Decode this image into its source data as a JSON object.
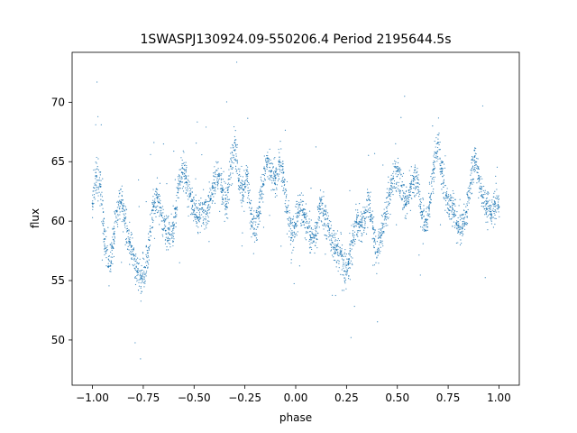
{
  "chart_data": {
    "type": "scatter",
    "title": "1SWASPJ130924.09-550206.4 Period 2195644.5s",
    "xlabel": "phase",
    "ylabel": "flux",
    "xlim": [
      -1.1,
      1.1
    ],
    "ylim": [
      46.2,
      74.2
    ],
    "grid": false,
    "legend": "none",
    "x_ticks": [
      -1.0,
      -0.75,
      -0.5,
      -0.25,
      0.0,
      0.25,
      0.5,
      0.75,
      1.0
    ],
    "x_tick_labels": [
      "−1.00",
      "−0.75",
      "−0.50",
      "−0.25",
      "0.00",
      "0.25",
      "0.50",
      "0.75",
      "1.00"
    ],
    "y_ticks": [
      50,
      55,
      60,
      65,
      70
    ],
    "y_tick_labels": [
      "50",
      "55",
      "60",
      "65",
      "70"
    ],
    "marker_color": "#1f77b4",
    "series": [
      {
        "points": [
          [
            -1.0,
            61.5
          ],
          [
            -0.98,
            63.8
          ],
          [
            -0.96,
            62.9
          ],
          [
            -0.94,
            58.5
          ],
          [
            -0.92,
            56.2
          ],
          [
            -0.9,
            57.8
          ],
          [
            -0.88,
            60.8
          ],
          [
            -0.86,
            61.6
          ],
          [
            -0.84,
            60.2
          ],
          [
            -0.82,
            58.3
          ],
          [
            -0.8,
            57.2
          ],
          [
            -0.78,
            55.8
          ],
          [
            -0.76,
            55.2
          ],
          [
            -0.74,
            56.1
          ],
          [
            -0.72,
            58.4
          ],
          [
            -0.7,
            61.2
          ],
          [
            -0.68,
            62.0
          ],
          [
            -0.66,
            60.5
          ],
          [
            -0.64,
            59.2
          ],
          [
            -0.62,
            58.9
          ],
          [
            -0.6,
            59.6
          ],
          [
            -0.58,
            62.4
          ],
          [
            -0.56,
            64.1
          ],
          [
            -0.54,
            63.6
          ],
          [
            -0.52,
            62.1
          ],
          [
            -0.5,
            60.9
          ],
          [
            -0.48,
            60.3
          ],
          [
            -0.46,
            61.1
          ],
          [
            -0.44,
            60.6
          ],
          [
            -0.42,
            61.9
          ],
          [
            -0.4,
            63.2
          ],
          [
            -0.38,
            63.8
          ],
          [
            -0.36,
            62.6
          ],
          [
            -0.34,
            61.2
          ],
          [
            -0.32,
            64.6
          ],
          [
            -0.3,
            66.6
          ],
          [
            -0.28,
            63.4
          ],
          [
            -0.26,
            62.2
          ],
          [
            -0.24,
            63.9
          ],
          [
            -0.22,
            60.6
          ],
          [
            -0.2,
            58.8
          ],
          [
            -0.18,
            61.2
          ],
          [
            -0.16,
            63.1
          ],
          [
            -0.14,
            65.3
          ],
          [
            -0.12,
            64.2
          ],
          [
            -0.1,
            63.6
          ],
          [
            -0.08,
            65.0
          ],
          [
            -0.06,
            64.1
          ],
          [
            -0.04,
            60.8
          ],
          [
            -0.02,
            58.6
          ],
          [
            0.0,
            59.8
          ],
          [
            0.02,
            61.4
          ],
          [
            0.04,
            60.6
          ],
          [
            0.06,
            59.4
          ],
          [
            0.08,
            58.6
          ],
          [
            0.1,
            58.8
          ],
          [
            0.12,
            61.0
          ],
          [
            0.14,
            60.9
          ],
          [
            0.16,
            59.6
          ],
          [
            0.18,
            58.2
          ],
          [
            0.2,
            57.6
          ],
          [
            0.22,
            57.4
          ],
          [
            0.24,
            55.8
          ],
          [
            0.26,
            56.4
          ],
          [
            0.28,
            58.2
          ],
          [
            0.3,
            59.9
          ],
          [
            0.32,
            59.6
          ],
          [
            0.34,
            60.2
          ],
          [
            0.36,
            61.8
          ],
          [
            0.38,
            59.4
          ],
          [
            0.4,
            57.4
          ],
          [
            0.42,
            58.8
          ],
          [
            0.44,
            60.4
          ],
          [
            0.46,
            62.2
          ],
          [
            0.48,
            63.6
          ],
          [
            0.5,
            64.2
          ],
          [
            0.52,
            63.0
          ],
          [
            0.54,
            61.4
          ],
          [
            0.56,
            62.2
          ],
          [
            0.58,
            63.6
          ],
          [
            0.6,
            63.2
          ],
          [
            0.62,
            60.8
          ],
          [
            0.64,
            59.2
          ],
          [
            0.66,
            61.6
          ],
          [
            0.68,
            64.4
          ],
          [
            0.7,
            66.6
          ],
          [
            0.72,
            64.2
          ],
          [
            0.74,
            62.2
          ],
          [
            0.76,
            61.2
          ],
          [
            0.78,
            60.6
          ],
          [
            0.8,
            59.6
          ],
          [
            0.82,
            59.4
          ],
          [
            0.84,
            60.8
          ],
          [
            0.86,
            63.2
          ],
          [
            0.88,
            65.4
          ],
          [
            0.9,
            63.6
          ],
          [
            0.92,
            62.0
          ],
          [
            0.94,
            61.0
          ],
          [
            0.96,
            60.8
          ],
          [
            0.98,
            61.6
          ],
          [
            1.0,
            61.2
          ]
        ]
      }
    ]
  }
}
